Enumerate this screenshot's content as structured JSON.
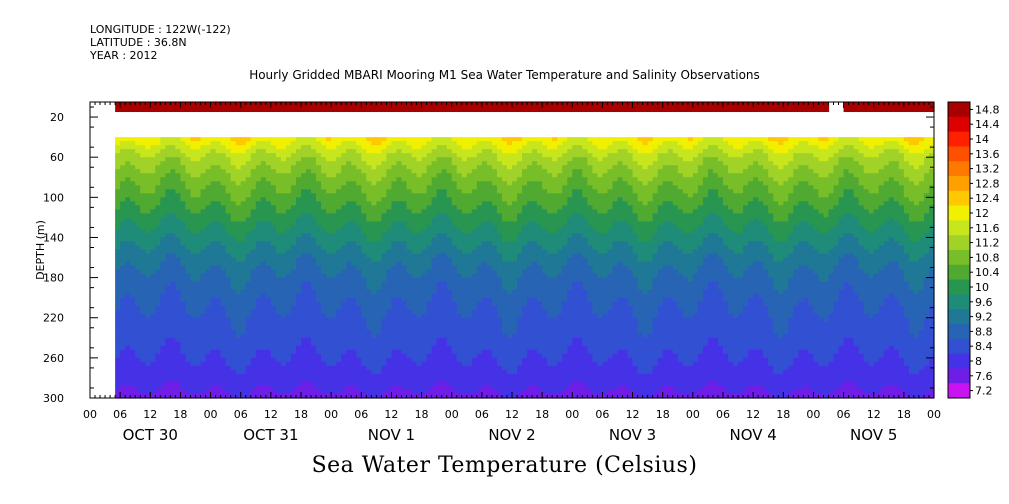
{
  "header": {
    "longitude": "LONGITUDE : 122W(-122)",
    "latitude": "LATITUDE : 36.8N",
    "year": "YEAR : 2012"
  },
  "chart_data": {
    "type": "heatmap",
    "title": "Hourly Gridded MBARI Mooring M1 Sea Water Temperature and Salinity Observations",
    "subtitle": "Sea Water Temperature (Celsius)",
    "ylabel": "DEPTH (m)",
    "y_inverted": true,
    "ylim": [
      300,
      5
    ],
    "yticks": [
      20,
      60,
      100,
      140,
      180,
      220,
      260,
      300
    ],
    "x_range_hours": [
      0,
      168
    ],
    "x_hour_labels": [
      "00",
      "06",
      "12",
      "18",
      "00",
      "06",
      "12",
      "18",
      "00",
      "06",
      "12",
      "18",
      "00",
      "06",
      "12",
      "18",
      "00",
      "06",
      "12",
      "18",
      "00",
      "06",
      "12",
      "18",
      "00",
      "06",
      "12",
      "18",
      "00"
    ],
    "date_labels": [
      "OCT 30",
      "OCT 31",
      "NOV  1",
      "NOV  2",
      "NOV  3",
      "NOV  4",
      "NOV  5"
    ],
    "data_start_hour": 5,
    "missing_hour_ranges": [
      [
        147,
        150
      ]
    ],
    "missing_depth_ranges": [
      [
        15,
        40
      ]
    ],
    "surface_band": {
      "depth_range": [
        5,
        15
      ],
      "value": 14.5
    },
    "depth_profile": [
      {
        "depth": 40,
        "value": 11.9
      },
      {
        "depth": 60,
        "value": 11.1
      },
      {
        "depth": 80,
        "value": 10.6
      },
      {
        "depth": 100,
        "value": 10.2
      },
      {
        "depth": 120,
        "value": 9.8
      },
      {
        "depth": 140,
        "value": 9.4
      },
      {
        "depth": 160,
        "value": 9.0
      },
      {
        "depth": 180,
        "value": 8.7
      },
      {
        "depth": 200,
        "value": 8.5
      },
      {
        "depth": 220,
        "value": 8.3
      },
      {
        "depth": 240,
        "value": 8.2
      },
      {
        "depth": 260,
        "value": 8.0
      },
      {
        "depth": 280,
        "value": 7.8
      },
      {
        "depth": 300,
        "value": 7.5
      }
    ],
    "colorbar_labels": [
      "14.8",
      "14.4",
      "14",
      "13.6",
      "13.2",
      "12.8",
      "12.4",
      "12",
      "11.6",
      "11.2",
      "10.8",
      "10.4",
      "10",
      "9.6",
      "9.2",
      "8.8",
      "8.4",
      "8",
      "7.6",
      "7.2"
    ],
    "colorbar_colors": [
      "#a80000",
      "#dc0000",
      "#ff2000",
      "#ff5000",
      "#ff7800",
      "#ffa000",
      "#ffc800",
      "#f0f000",
      "#c8e61e",
      "#a0d228",
      "#78be28",
      "#50aa32",
      "#289650",
      "#1e8c78",
      "#1e7896",
      "#2864b4",
      "#3250d2",
      "#4632e6",
      "#6e1ee6",
      "#c814f0"
    ]
  }
}
